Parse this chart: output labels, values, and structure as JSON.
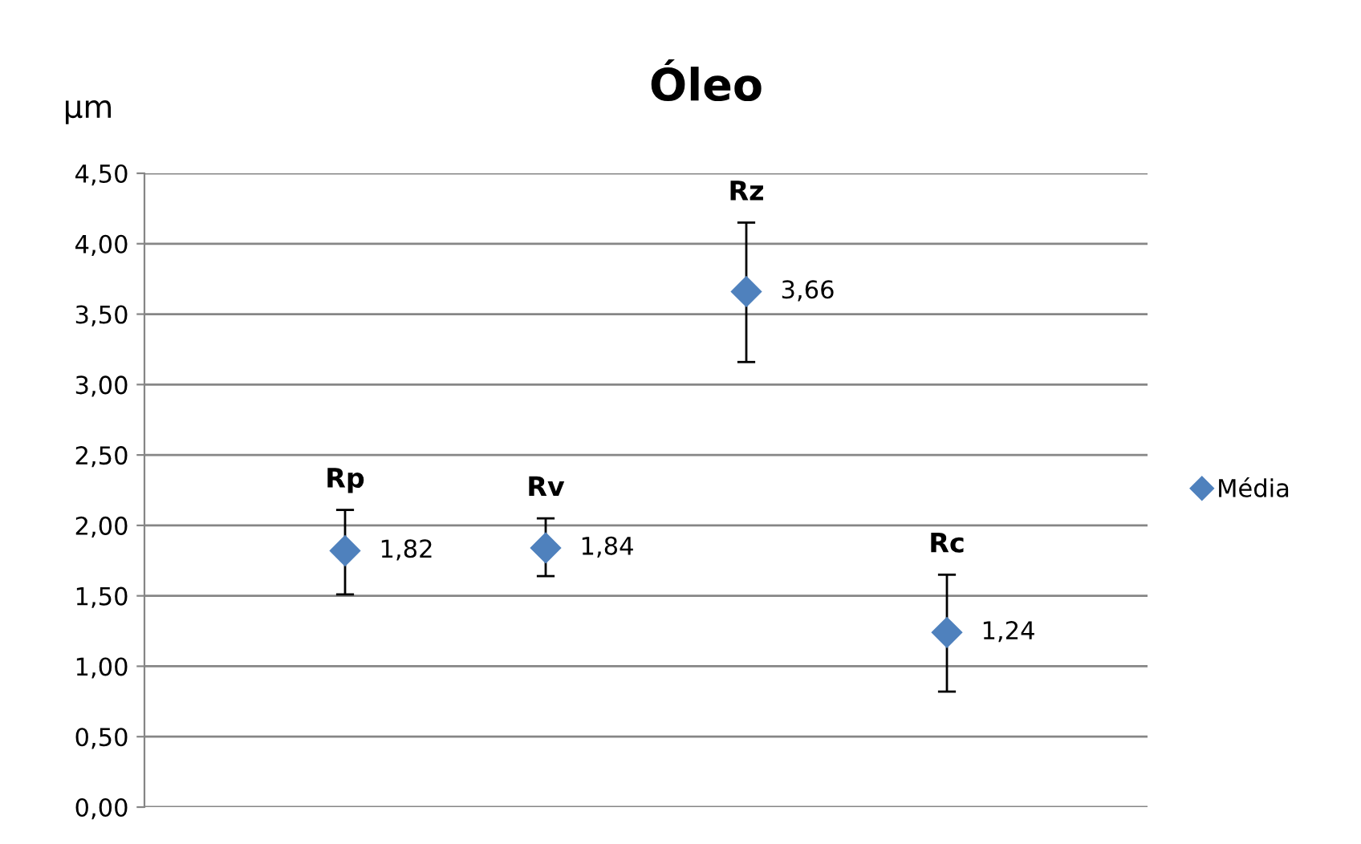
{
  "chart_data": {
    "type": "scatter",
    "title": "Óleo",
    "ylabel": "µm",
    "categories": [
      "Rp",
      "Rv",
      "Rz",
      "Rc"
    ],
    "series": [
      {
        "name": "Média",
        "color": "#4f81bd",
        "values": [
          1.82,
          1.84,
          3.66,
          1.24
        ],
        "errors": [
          [
            1.51,
            2.11
          ],
          [
            1.64,
            2.05
          ],
          [
            3.16,
            4.15
          ],
          [
            0.82,
            1.65
          ]
        ]
      }
    ],
    "value_labels": [
      "1,82",
      "1,84",
      "3,66",
      "1,24"
    ],
    "marker": "diamond",
    "grid": "y",
    "legend": "right",
    "ylim": [
      0,
      4.5
    ],
    "yticks": [
      {
        "value": 0,
        "label": "0,00"
      },
      {
        "value": 0.5,
        "label": "0,50"
      },
      {
        "value": 1,
        "label": "1,00"
      },
      {
        "value": 1.5,
        "label": "1,50"
      },
      {
        "value": 2,
        "label": "2,00"
      },
      {
        "value": 2.5,
        "label": "2,50"
      },
      {
        "value": 3,
        "label": "3,00"
      },
      {
        "value": 3.5,
        "label": "3,50"
      },
      {
        "value": 4,
        "label": "4,00"
      },
      {
        "value": 4.5,
        "label": "4,50"
      }
    ]
  }
}
